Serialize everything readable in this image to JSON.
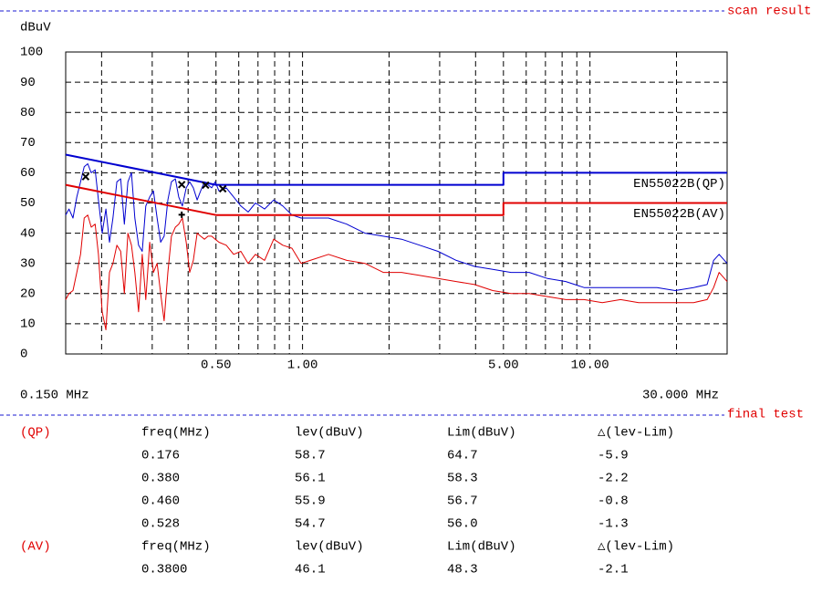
{
  "chart_data": {
    "type": "line",
    "title": "scan result",
    "y_label": "dBuV",
    "x_scale": "log",
    "grid": true,
    "xlim": [
      0.15,
      30
    ],
    "x_start_label": "0.150 MHz",
    "x_stop_label": "30.000 MHz",
    "xticks": [
      {
        "value": 0.5,
        "label": "0.50"
      },
      {
        "value": 1,
        "label": "1.00"
      },
      {
        "value": 5,
        "label": "5.00"
      },
      {
        "value": 10,
        "label": "10.00"
      }
    ],
    "xgrid": [
      0.2,
      0.3,
      0.4,
      0.6,
      0.7,
      0.8,
      0.9,
      2,
      3,
      4,
      6,
      7,
      8,
      9,
      20
    ],
    "ylim": [
      0,
      100
    ],
    "yticks": [
      0,
      10,
      20,
      30,
      40,
      50,
      60,
      70,
      80,
      90,
      100
    ],
    "x": [
      0.15,
      0.154,
      0.159,
      0.164,
      0.169,
      0.174,
      0.179,
      0.184,
      0.19,
      0.195,
      0.201,
      0.207,
      0.213,
      0.219,
      0.226,
      0.233,
      0.24,
      0.247,
      0.254,
      0.261,
      0.269,
      0.277,
      0.285,
      0.294,
      0.303,
      0.312,
      0.321,
      0.33,
      0.34,
      0.35,
      0.361,
      0.371,
      0.382,
      0.394,
      0.405,
      0.417,
      0.43,
      0.442,
      0.456,
      0.469,
      0.483,
      0.497,
      0.512,
      0.543,
      0.576,
      0.61,
      0.647,
      0.686,
      0.738,
      0.794,
      0.854,
      0.919,
      0.989,
      1.064,
      1.232,
      1.425,
      1.65,
      1.91,
      2.211,
      2.558,
      2.961,
      3.427,
      3.966,
      4.59,
      5.313,
      6.15,
      7.119,
      8.24,
      9.537,
      11.04,
      12.78,
      14.78,
      17.11,
      19.8,
      22.92,
      25.57,
      26.92,
      28.13,
      30.0
    ],
    "series": [
      {
        "color": "#0000d0",
        "values": [
          46,
          48,
          45,
          52,
          57,
          62,
          63,
          60,
          61,
          51,
          40,
          48,
          37,
          45,
          57,
          58,
          43,
          57,
          60,
          45,
          36,
          34,
          49,
          52,
          54,
          45,
          37,
          39,
          51,
          57,
          58,
          52,
          49,
          55,
          57,
          55,
          51,
          54,
          57,
          56,
          55,
          57,
          54,
          55,
          52,
          49,
          47,
          50,
          48,
          51,
          49,
          46,
          45,
          45,
          45,
          43,
          40,
          39,
          38,
          36,
          34,
          31,
          29,
          28,
          27,
          27,
          25,
          24,
          22,
          22,
          22,
          22,
          22,
          21,
          22,
          23,
          31,
          33,
          30
        ]
      },
      {
        "color": "#e00000",
        "values": [
          18,
          20,
          21,
          27,
          33,
          45,
          46,
          42,
          43,
          33,
          14,
          8,
          27,
          30,
          36,
          34,
          20,
          40,
          36,
          27,
          14,
          33,
          18,
          37,
          27,
          30,
          20,
          11,
          27,
          39,
          42,
          43,
          45,
          37,
          27,
          31,
          40,
          39,
          38,
          39,
          39,
          38,
          37,
          36,
          33,
          34,
          30,
          33,
          31,
          38,
          36,
          35,
          30,
          31,
          33,
          31,
          30,
          27,
          27,
          26,
          25,
          24,
          23,
          21,
          20,
          20,
          19,
          18,
          18,
          17,
          18,
          17,
          17,
          17,
          17,
          18,
          22,
          27,
          24
        ]
      },
      {
        "name": "EN55022B(QP)",
        "color": "#0000d0",
        "limit": true,
        "x": [
          0.15,
          0.5,
          5,
          5,
          30
        ],
        "values": [
          66,
          56,
          56,
          60,
          60
        ]
      },
      {
        "name": "EN55022B(AV)",
        "color": "#e00000",
        "limit": true,
        "x": [
          0.15,
          0.5,
          5,
          5,
          30
        ],
        "values": [
          56,
          46,
          46,
          50,
          50
        ]
      }
    ],
    "markers": [
      {
        "symbol": "x",
        "color": "#000000",
        "x": [
          0.176,
          0.38,
          0.46,
          0.528
        ],
        "values": [
          58.7,
          56.1,
          55.9,
          54.7
        ]
      },
      {
        "symbol": "+",
        "color": "#000000",
        "x": [
          0.38
        ],
        "values": [
          46.1
        ]
      }
    ]
  },
  "final_test": {
    "title": "final test",
    "groups": [
      {
        "label": "(QP)",
        "header": [
          "freq(MHz)",
          "lev(dBuV)",
          "Lim(dBuV)",
          "△(lev-Lim)"
        ],
        "rows": [
          [
            "0.176",
            "58.7",
            "64.7",
            "-5.9"
          ],
          [
            "0.380",
            "56.1",
            "58.3",
            "-2.2"
          ],
          [
            "0.460",
            "55.9",
            "56.7",
            "-0.8"
          ],
          [
            "0.528",
            "54.7",
            "56.0",
            "-1.3"
          ]
        ]
      },
      {
        "label": "(AV)",
        "header": [
          "freq(MHz)",
          "lev(dBuV)",
          "Lim(dBuV)",
          "△(lev-Lim)"
        ],
        "rows": [
          [
            "0.3800",
            "46.1",
            "48.3",
            "-2.1"
          ]
        ]
      }
    ]
  }
}
